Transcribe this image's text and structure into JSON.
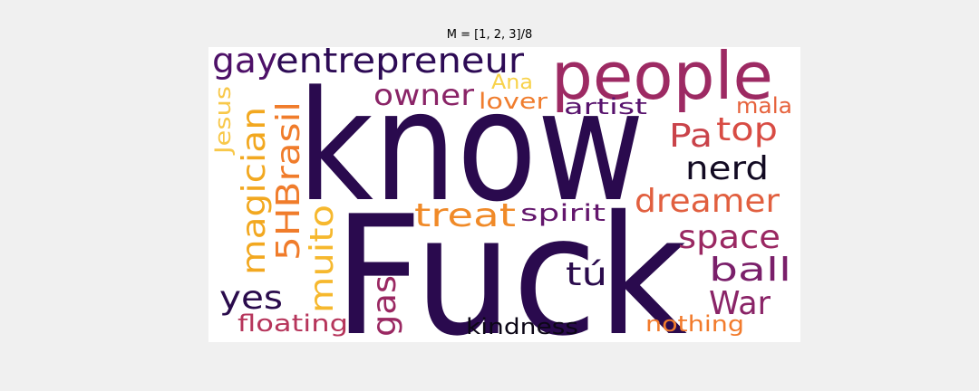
{
  "title": "M = [1, 2, 3]/8",
  "words": [
    {
      "text": "know",
      "color": "#2a0a4e"
    },
    {
      "text": "Fuck",
      "color": "#2a0a4e"
    },
    {
      "text": "people",
      "color": "#9d2a63"
    },
    {
      "text": "gay",
      "color": "#4e1168"
    },
    {
      "text": "entrepreneur",
      "color": "#2d0b55"
    },
    {
      "text": "owner",
      "color": "#8a2467"
    },
    {
      "text": "Ana",
      "color": "#f8d24a"
    },
    {
      "text": "lover",
      "color": "#f07d2e"
    },
    {
      "text": "artist",
      "color": "#57126c"
    },
    {
      "text": "mala",
      "color": "#e6623c"
    },
    {
      "text": "top",
      "color": "#d84c44"
    },
    {
      "text": "Pa",
      "color": "#c9434a"
    },
    {
      "text": "nerd",
      "color": "#120a22"
    },
    {
      "text": "dreamer",
      "color": "#e15f3f"
    },
    {
      "text": "treat",
      "color": "#f08a28"
    },
    {
      "text": "spirit",
      "color": "#63166c"
    },
    {
      "text": "space",
      "color": "#9a2862"
    },
    {
      "text": "ball",
      "color": "#7a1f6a"
    },
    {
      "text": "tú",
      "color": "#2a0b4c"
    },
    {
      "text": "War",
      "color": "#8a2467"
    },
    {
      "text": "yes",
      "color": "#2a0b4c"
    },
    {
      "text": "floating",
      "color": "#b6355b"
    },
    {
      "text": "kindness",
      "color": "#0c0716"
    },
    {
      "text": "nothing",
      "color": "#f27b2c"
    },
    {
      "text": "Jesus",
      "color": "#f8c84a"
    },
    {
      "text": "magician",
      "color": "#f2a820"
    },
    {
      "text": "5HBrasil",
      "color": "#f07c2b"
    },
    {
      "text": "muito",
      "color": "#f6b82e"
    },
    {
      "text": "gas",
      "color": "#9a2862"
    }
  ]
}
